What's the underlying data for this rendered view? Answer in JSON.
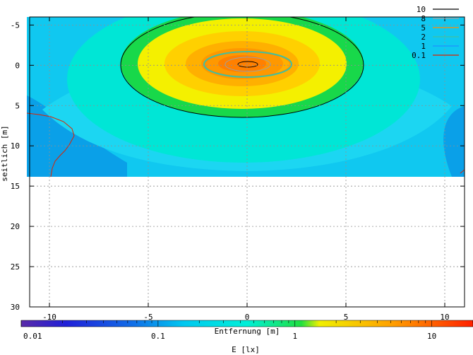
{
  "chart_data": {
    "type": "heatmap",
    "title": "",
    "xlabel": "Entfernung [m]",
    "ylabel": "seitlich [m]",
    "xlim": [
      -11,
      11
    ],
    "ylim": [
      30,
      -6
    ],
    "data_extent": {
      "x": [
        -11,
        11
      ],
      "y": [
        -6,
        14
      ]
    },
    "x_ticks": [
      -10,
      -5,
      0,
      5,
      10
    ],
    "x_tick_labels": [
      "-10",
      "-5",
      "0",
      "5",
      "10"
    ],
    "y_ticks": [
      -5,
      0,
      5,
      10,
      15,
      20,
      25,
      30
    ],
    "y_tick_labels": [
      "-5",
      "0",
      "5",
      "10",
      "15",
      "20",
      "25",
      "30"
    ],
    "grid": true,
    "legend_position": "top-right",
    "contours": [
      {
        "name": "10",
        "level": 10,
        "color": "#000000"
      },
      {
        "name": "8",
        "level": 8,
        "color": "#a0a0a0"
      },
      {
        "name": "5",
        "level": 5,
        "color": "#ff8c00"
      },
      {
        "name": "2",
        "level": 2,
        "color": "#40c0a0"
      },
      {
        "name": "1",
        "level": 1,
        "color": "#1e90ff"
      },
      {
        "name": "0.1",
        "level": 0.1,
        "color": "#dd2200"
      }
    ],
    "colorbar": {
      "label": "E [lx]",
      "scale": "log",
      "range": [
        0.01,
        20
      ],
      "tick_values": [
        0.01,
        0.1,
        1,
        10
      ],
      "tick_labels": [
        "0.01",
        "0.1",
        "1",
        "10"
      ]
    }
  }
}
